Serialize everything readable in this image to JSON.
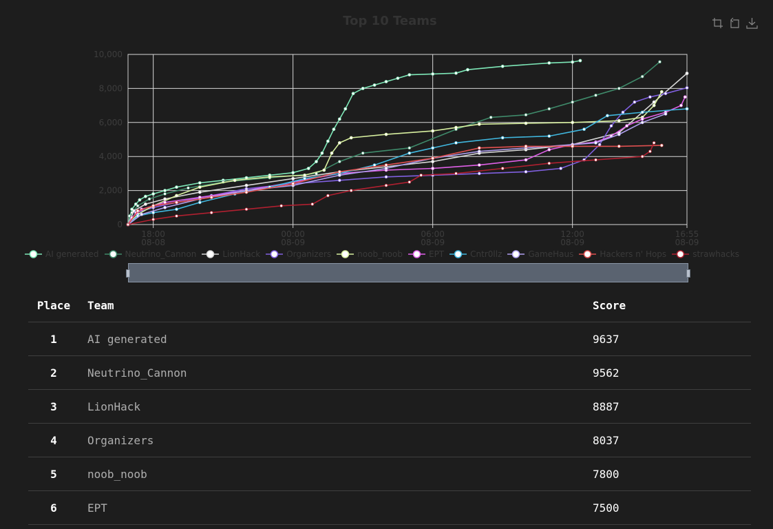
{
  "chart_data": {
    "type": "line",
    "title": "Top 10 Teams",
    "y_ticks": [
      "0",
      "2,000",
      "4,000",
      "6,000",
      "8,000",
      "10,000"
    ],
    "ylim": [
      0,
      10000
    ],
    "x_ticks": [
      {
        "time": "18:00",
        "date": "08-08"
      },
      {
        "time": "00:00",
        "date": "08-09"
      },
      {
        "time": "06:00",
        "date": "08-09"
      },
      {
        "time": "12:00",
        "date": "08-09"
      },
      {
        "time": "16:55",
        "date": "08-09"
      }
    ],
    "xlim": [
      "2024-08-08 16:55",
      "2024-08-09 16:55"
    ],
    "grid": true,
    "legend_position": "bottom",
    "series": [
      {
        "name": "AI generated",
        "color": "#7ee8b8",
        "points": [
          [
            "2024-08-08 16:55",
            0
          ],
          [
            "2024-08-08 17:00",
            500
          ],
          [
            "2024-08-08 17:05",
            900
          ],
          [
            "2024-08-08 17:15",
            1200
          ],
          [
            "2024-08-08 17:25",
            1450
          ],
          [
            "2024-08-08 17:40",
            1650
          ],
          [
            "2024-08-08 18:00",
            1800
          ],
          [
            "2024-08-08 18:30",
            2000
          ],
          [
            "2024-08-08 19:00",
            2200
          ],
          [
            "2024-08-08 20:00",
            2450
          ],
          [
            "2024-08-08 21:00",
            2600
          ],
          [
            "2024-08-08 22:00",
            2750
          ],
          [
            "2024-08-08 23:00",
            2900
          ],
          [
            "2024-08-09 00:00",
            3050
          ],
          [
            "2024-08-09 00:40",
            3300
          ],
          [
            "2024-08-09 01:00",
            3700
          ],
          [
            "2024-08-09 01:15",
            4200
          ],
          [
            "2024-08-09 01:30",
            4900
          ],
          [
            "2024-08-09 01:45",
            5600
          ],
          [
            "2024-08-09 02:00",
            6200
          ],
          [
            "2024-08-09 02:15",
            6800
          ],
          [
            "2024-08-09 02:35",
            7700
          ],
          [
            "2024-08-09 03:00",
            8000
          ],
          [
            "2024-08-09 03:30",
            8200
          ],
          [
            "2024-08-09 04:00",
            8400
          ],
          [
            "2024-08-09 04:30",
            8600
          ],
          [
            "2024-08-09 05:00",
            8800
          ],
          [
            "2024-08-09 06:00",
            8850
          ],
          [
            "2024-08-09 07:00",
            8900
          ],
          [
            "2024-08-09 07:30",
            9100
          ],
          [
            "2024-08-09 09:00",
            9300
          ],
          [
            "2024-08-09 11:00",
            9500
          ],
          [
            "2024-08-09 12:00",
            9550
          ],
          [
            "2024-08-09 12:20",
            9637
          ]
        ]
      },
      {
        "name": "Neutrino_Cannon",
        "color": "#3f8a6a",
        "points": [
          [
            "2024-08-08 16:55",
            0
          ],
          [
            "2024-08-08 17:05",
            700
          ],
          [
            "2024-08-08 17:20",
            1100
          ],
          [
            "2024-08-08 17:50",
            1500
          ],
          [
            "2024-08-08 18:30",
            1800
          ],
          [
            "2024-08-08 19:30",
            2150
          ],
          [
            "2024-08-08 21:00",
            2500
          ],
          [
            "2024-08-08 23:00",
            2750
          ],
          [
            "2024-08-09 01:00",
            3000
          ],
          [
            "2024-08-09 02:00",
            3700
          ],
          [
            "2024-08-09 03:00",
            4200
          ],
          [
            "2024-08-09 05:00",
            4500
          ],
          [
            "2024-08-09 07:00",
            5600
          ],
          [
            "2024-08-09 08:30",
            6300
          ],
          [
            "2024-08-09 10:00",
            6450
          ],
          [
            "2024-08-09 11:00",
            6800
          ],
          [
            "2024-08-09 12:00",
            7200
          ],
          [
            "2024-08-09 13:00",
            7600
          ],
          [
            "2024-08-09 14:00",
            8000
          ],
          [
            "2024-08-09 15:00",
            8700
          ],
          [
            "2024-08-09 15:45",
            9562
          ]
        ]
      },
      {
        "name": "LionHack",
        "color": "#d8d8d8",
        "points": [
          [
            "2024-08-08 16:55",
            0
          ],
          [
            "2024-08-08 17:10",
            800
          ],
          [
            "2024-08-08 17:40",
            1200
          ],
          [
            "2024-08-08 18:30",
            1500
          ],
          [
            "2024-08-08 20:00",
            1900
          ],
          [
            "2024-08-08 22:00",
            2300
          ],
          [
            "2024-08-09 00:00",
            2700
          ],
          [
            "2024-08-09 02:00",
            3100
          ],
          [
            "2024-08-09 04:00",
            3400
          ],
          [
            "2024-08-09 06:00",
            3700
          ],
          [
            "2024-08-09 08:00",
            4200
          ],
          [
            "2024-08-09 10:00",
            4400
          ],
          [
            "2024-08-09 12:00",
            4700
          ],
          [
            "2024-08-09 14:00",
            5400
          ],
          [
            "2024-08-09 15:30",
            7200
          ],
          [
            "2024-08-09 16:55",
            8887
          ]
        ]
      },
      {
        "name": "Organizers",
        "color": "#8060e0",
        "points": [
          [
            "2024-08-08 16:55",
            0
          ],
          [
            "2024-08-08 17:15",
            700
          ],
          [
            "2024-08-08 18:00",
            1000
          ],
          [
            "2024-08-08 19:00",
            1300
          ],
          [
            "2024-08-08 20:30",
            1700
          ],
          [
            "2024-08-08 22:00",
            2100
          ],
          [
            "2024-08-09 00:00",
            2400
          ],
          [
            "2024-08-09 02:00",
            2600
          ],
          [
            "2024-08-09 04:00",
            2800
          ],
          [
            "2024-08-09 06:00",
            2900
          ],
          [
            "2024-08-09 08:00",
            3000
          ],
          [
            "2024-08-09 10:00",
            3100
          ],
          [
            "2024-08-09 11:30",
            3300
          ],
          [
            "2024-08-09 12:30",
            3800
          ],
          [
            "2024-08-09 13:10",
            4700
          ],
          [
            "2024-08-09 13:40",
            5800
          ],
          [
            "2024-08-09 14:10",
            6600
          ],
          [
            "2024-08-09 14:40",
            7200
          ],
          [
            "2024-08-09 15:20",
            7500
          ],
          [
            "2024-08-09 16:00",
            7700
          ],
          [
            "2024-08-09 16:55",
            8037
          ]
        ]
      },
      {
        "name": "noob_noob",
        "color": "#d8f0a0",
        "points": [
          [
            "2024-08-08 16:55",
            0
          ],
          [
            "2024-08-08 17:20",
            600
          ],
          [
            "2024-08-08 18:00",
            1100
          ],
          [
            "2024-08-08 19:00",
            1700
          ],
          [
            "2024-08-08 20:00",
            2200
          ],
          [
            "2024-08-08 21:30",
            2600
          ],
          [
            "2024-08-08 23:00",
            2800
          ],
          [
            "2024-08-09 00:30",
            2900
          ],
          [
            "2024-08-09 01:20",
            3200
          ],
          [
            "2024-08-09 01:40",
            4200
          ],
          [
            "2024-08-09 02:00",
            4800
          ],
          [
            "2024-08-09 02:30",
            5100
          ],
          [
            "2024-08-09 04:00",
            5300
          ],
          [
            "2024-08-09 06:00",
            5500
          ],
          [
            "2024-08-09 07:00",
            5700
          ],
          [
            "2024-08-09 08:00",
            5900
          ],
          [
            "2024-08-09 10:00",
            5950
          ],
          [
            "2024-08-09 12:00",
            6000
          ],
          [
            "2024-08-09 14:00",
            6100
          ],
          [
            "2024-08-09 15:00",
            6300
          ],
          [
            "2024-08-09 15:30",
            7000
          ],
          [
            "2024-08-09 15:50",
            7800
          ]
        ]
      },
      {
        "name": "EPT",
        "color": "#e060e8",
        "points": [
          [
            "2024-08-08 16:55",
            0
          ],
          [
            "2024-08-08 17:05",
            400
          ],
          [
            "2024-08-08 17:30",
            900
          ],
          [
            "2024-08-08 18:30",
            1300
          ],
          [
            "2024-08-08 20:00",
            1600
          ],
          [
            "2024-08-08 22:00",
            2000
          ],
          [
            "2024-08-09 00:00",
            2500
          ],
          [
            "2024-08-09 02:00",
            3000
          ],
          [
            "2024-08-09 04:00",
            3200
          ],
          [
            "2024-08-09 06:00",
            3300
          ],
          [
            "2024-08-09 08:00",
            3500
          ],
          [
            "2024-08-09 10:00",
            3800
          ],
          [
            "2024-08-09 11:00",
            4400
          ],
          [
            "2024-08-09 12:00",
            4700
          ],
          [
            "2024-08-09 13:00",
            4850
          ],
          [
            "2024-08-09 13:40",
            5200
          ],
          [
            "2024-08-09 14:20",
            5800
          ],
          [
            "2024-08-09 15:00",
            6200
          ],
          [
            "2024-08-09 16:00",
            6600
          ],
          [
            "2024-08-09 16:40",
            7000
          ],
          [
            "2024-08-09 16:50",
            7500
          ]
        ]
      },
      {
        "name": "Cntr0llz",
        "color": "#40b8e0",
        "points": [
          [
            "2024-08-08 16:55",
            0
          ],
          [
            "2024-08-08 17:20",
            500
          ],
          [
            "2024-08-08 18:00",
            700
          ],
          [
            "2024-08-08 19:00",
            900
          ],
          [
            "2024-08-08 20:00",
            1300
          ],
          [
            "2024-08-08 21:30",
            1800
          ],
          [
            "2024-08-08 23:00",
            2200
          ],
          [
            "2024-08-09 00:30",
            2700
          ],
          [
            "2024-08-09 02:00",
            3000
          ],
          [
            "2024-08-09 03:30",
            3500
          ],
          [
            "2024-08-09 05:00",
            4200
          ],
          [
            "2024-08-09 06:00",
            4500
          ],
          [
            "2024-08-09 07:00",
            4800
          ],
          [
            "2024-08-09 09:00",
            5100
          ],
          [
            "2024-08-09 11:00",
            5200
          ],
          [
            "2024-08-09 12:30",
            5600
          ],
          [
            "2024-08-09 13:30",
            6400
          ],
          [
            "2024-08-09 15:00",
            6600
          ],
          [
            "2024-08-09 16:55",
            6800
          ]
        ]
      },
      {
        "name": "GameHaus",
        "color": "#b0a0f0",
        "points": [
          [
            "2024-08-08 16:55",
            0
          ],
          [
            "2024-08-08 17:30",
            600
          ],
          [
            "2024-08-08 18:30",
            1000
          ],
          [
            "2024-08-08 20:00",
            1500
          ],
          [
            "2024-08-08 22:00",
            2000
          ],
          [
            "2024-08-09 00:00",
            2300
          ],
          [
            "2024-08-09 02:00",
            2900
          ],
          [
            "2024-08-09 04:00",
            3300
          ],
          [
            "2024-08-09 06:00",
            3900
          ],
          [
            "2024-08-09 08:00",
            4300
          ],
          [
            "2024-08-09 10:00",
            4500
          ],
          [
            "2024-08-09 12:00",
            4700
          ],
          [
            "2024-08-09 13:00",
            4800
          ],
          [
            "2024-08-09 14:00",
            5300
          ],
          [
            "2024-08-09 15:00",
            6000
          ],
          [
            "2024-08-09 16:00",
            6500
          ]
        ]
      },
      {
        "name": "Hackers n' Hops",
        "color": "#e05050",
        "points": [
          [
            "2024-08-08 16:55",
            0
          ],
          [
            "2024-08-08 17:20",
            800
          ],
          [
            "2024-08-08 18:00",
            1100
          ],
          [
            "2024-08-08 19:00",
            1300
          ],
          [
            "2024-08-08 20:30",
            1600
          ],
          [
            "2024-08-08 22:00",
            1900
          ],
          [
            "2024-08-09 00:00",
            2400
          ],
          [
            "2024-08-09 02:00",
            3100
          ],
          [
            "2024-08-09 04:00",
            3500
          ],
          [
            "2024-08-09 06:00",
            3900
          ],
          [
            "2024-08-09 08:00",
            4500
          ],
          [
            "2024-08-09 10:00",
            4600
          ],
          [
            "2024-08-09 12:00",
            4600
          ],
          [
            "2024-08-09 14:00",
            4600
          ],
          [
            "2024-08-09 15:50",
            4650
          ]
        ]
      },
      {
        "name": "strawhacks",
        "color": "#b02030",
        "points": [
          [
            "2024-08-08 16:55",
            0
          ],
          [
            "2024-08-08 18:00",
            300
          ],
          [
            "2024-08-08 19:00",
            500
          ],
          [
            "2024-08-08 20:30",
            700
          ],
          [
            "2024-08-08 22:00",
            900
          ],
          [
            "2024-08-08 23:30",
            1100
          ],
          [
            "2024-08-09 00:50",
            1200
          ],
          [
            "2024-08-09 01:30",
            1700
          ],
          [
            "2024-08-09 02:30",
            2000
          ],
          [
            "2024-08-09 04:00",
            2300
          ],
          [
            "2024-08-09 05:00",
            2500
          ],
          [
            "2024-08-09 05:30",
            2900
          ],
          [
            "2024-08-09 07:00",
            3000
          ],
          [
            "2024-08-09 09:00",
            3300
          ],
          [
            "2024-08-09 11:00",
            3600
          ],
          [
            "2024-08-09 13:00",
            3800
          ],
          [
            "2024-08-09 15:00",
            4000
          ],
          [
            "2024-08-09 15:20",
            4300
          ],
          [
            "2024-08-09 15:30",
            4800
          ]
        ]
      }
    ]
  },
  "table": {
    "headers": {
      "place": "Place",
      "team": "Team",
      "score": "Score"
    },
    "rows": [
      {
        "place": "1",
        "team": "AI generated",
        "score": "9637"
      },
      {
        "place": "2",
        "team": "Neutrino_Cannon",
        "score": "9562"
      },
      {
        "place": "3",
        "team": "LionHack",
        "score": "8887"
      },
      {
        "place": "4",
        "team": "Organizers",
        "score": "8037"
      },
      {
        "place": "5",
        "team": "noob_noob",
        "score": "7800"
      },
      {
        "place": "6",
        "team": "EPT",
        "score": "7500"
      }
    ]
  },
  "toolbox": {
    "icons": [
      "zoom-icon",
      "zoom-reset-icon",
      "save-image-icon"
    ]
  }
}
